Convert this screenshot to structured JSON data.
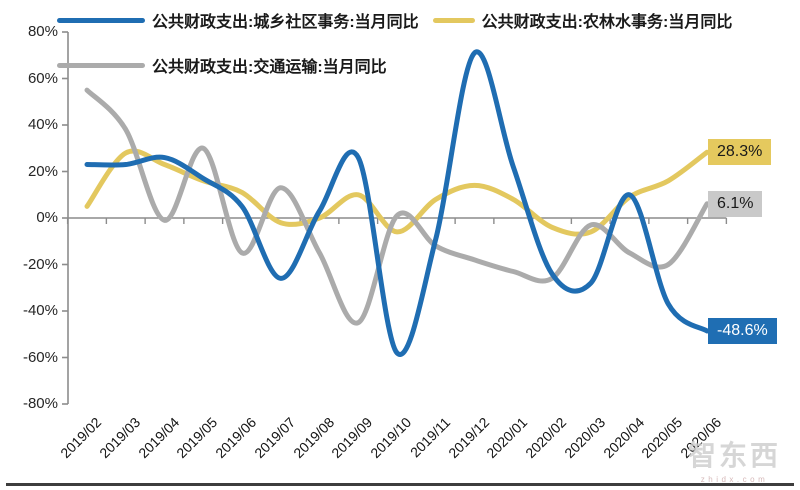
{
  "chart_data": {
    "type": "line",
    "title": "",
    "categories": [
      "2019/02",
      "2019/03",
      "2019/04",
      "2019/05",
      "2019/06",
      "2019/07",
      "2019/08",
      "2019/09",
      "2019/10",
      "2019/11",
      "2019/12",
      "2020/01",
      "2020/02",
      "2020/03",
      "2020/04",
      "2020/05",
      "2020/06"
    ],
    "series": [
      {
        "name": "公共财政支出:城乡社区事务:当月同比",
        "color": "#1F6DB2",
        "values": [
          23,
          23,
          26,
          17,
          5,
          -26,
          3,
          26,
          -58,
          -9,
          71,
          22,
          -24,
          -28,
          10,
          -37,
          -48.6
        ],
        "end_label": "-48.6%",
        "end_label_bg": "#1F6EB3",
        "end_label_text_color": "#FFFFFF"
      },
      {
        "name": "公共财政支出:农林水事务:当月同比",
        "color": "#E3C85F",
        "values": [
          5,
          28,
          23,
          16,
          11,
          -2,
          0,
          10,
          -6,
          8,
          14,
          8,
          -4,
          -6,
          9,
          16,
          28.3
        ],
        "end_label": "28.3%",
        "end_label_bg": "#E5C95E",
        "end_label_text_color": "#1A1A1A"
      },
      {
        "name": "公共财政支出:交通运输:当月同比",
        "color": "#ABABAB",
        "values": [
          55,
          38,
          -1,
          30,
          -15,
          13,
          -15,
          -45,
          1,
          -12,
          -18,
          -23,
          -26,
          -3,
          -15,
          -20,
          6.1
        ],
        "end_label": "6.1%",
        "end_label_bg": "#C9C9C9",
        "end_label_text_color": "#1A1A1A"
      }
    ],
    "ylim": [
      -80,
      80
    ],
    "ytick_step": 20,
    "ytick_labels": [
      "80%",
      "60%",
      "40%",
      "20%",
      "0%",
      "-20%",
      "-40%",
      "-60%",
      "-80%"
    ],
    "grid": "zero-line-only",
    "legend_position": "top-left",
    "axis_color": "#8C8C8C"
  },
  "watermark": {
    "text": "智东西",
    "subtext": "zhidx.com"
  }
}
